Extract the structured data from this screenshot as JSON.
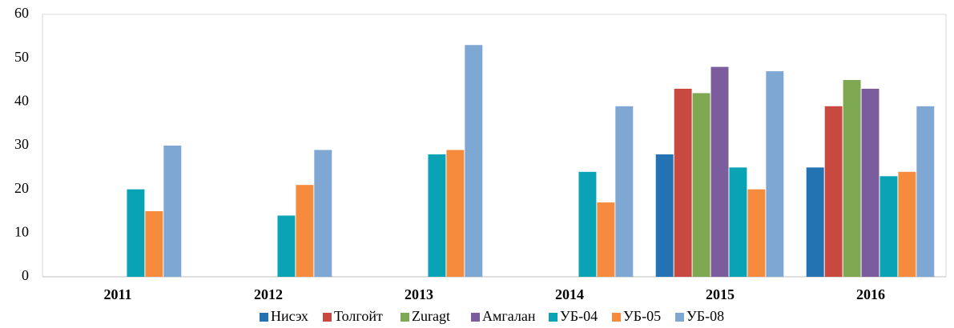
{
  "chart_data": {
    "type": "bar",
    "categories": [
      "2011",
      "2012",
      "2013",
      "2014",
      "2015",
      "2016"
    ],
    "series": [
      {
        "name": "Нисэх",
        "color": "#2372b2",
        "values": [
          null,
          null,
          null,
          null,
          28,
          25
        ]
      },
      {
        "name": "Толгойт",
        "color": "#c9483f",
        "values": [
          null,
          null,
          null,
          null,
          43,
          39
        ]
      },
      {
        "name": "Zuragt",
        "color": "#7ea852",
        "values": [
          null,
          null,
          null,
          null,
          42,
          45
        ]
      },
      {
        "name": "Амгалан",
        "color": "#7b5c9c",
        "values": [
          null,
          null,
          null,
          null,
          48,
          43
        ]
      },
      {
        "name": "УБ-04",
        "color": "#0aa2b5",
        "values": [
          20,
          14,
          28,
          24,
          25,
          23
        ]
      },
      {
        "name": "УБ-05",
        "color": "#f68a3d",
        "values": [
          15,
          21,
          29,
          17,
          20,
          24
        ]
      },
      {
        "name": "УБ-08",
        "color": "#7fa7d4",
        "values": [
          30,
          29,
          53,
          39,
          47,
          39
        ]
      }
    ],
    "ylim": [
      0,
      60
    ],
    "yticks": [
      0,
      10,
      20,
      30,
      40,
      50,
      60
    ],
    "grid": false,
    "legend": "bottom"
  }
}
